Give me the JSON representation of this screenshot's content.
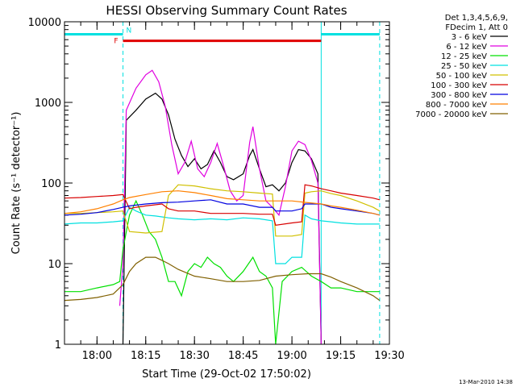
{
  "chart_data": {
    "type": "line",
    "title": "HESSI Observing Summary Count Rates",
    "xlabel": "Start Time (29-Oct-02 17:50:02)",
    "ylabel": "Count Rate (s⁻¹ detector⁻¹)",
    "yscale": "log",
    "xlim": [
      "17:50",
      "19:30"
    ],
    "ylim": [
      1,
      10000
    ],
    "x_ticks": [
      "18:00",
      "18:15",
      "18:30",
      "18:45",
      "19:00",
      "19:15",
      "19:30"
    ],
    "y_ticks": [
      "1",
      "10",
      "100",
      "1000",
      "10000"
    ],
    "legend_header": [
      "Det 1,3,4,5,6,9,",
      "FDecim 1, Att 0"
    ],
    "legend_position": "right",
    "flags": [
      {
        "label": "N",
        "color": "#00e0e0",
        "segments": [
          [
            "17:50",
            "18:08"
          ],
          [
            "19:09",
            "19:27"
          ]
        ],
        "level": 7000
      },
      {
        "label": "F",
        "color": "#e00000",
        "segments": [
          [
            "18:08",
            "19:09"
          ]
        ],
        "level": 5800
      }
    ],
    "vertical_markers": [
      {
        "time": "17:50",
        "style": "solid",
        "color": "#00e0e0"
      },
      {
        "time": "18:08",
        "style": "dashed",
        "color": "#00e0e0"
      },
      {
        "time": "19:09",
        "style": "solid",
        "color": "#00e0e0"
      },
      {
        "time": "19:27",
        "style": "dashed",
        "color": "#00e0e0"
      }
    ],
    "series": [
      {
        "name": "3 - 6 keV",
        "color": "#000000",
        "points": [
          [
            "18:08",
            1
          ],
          [
            "18:09",
            600
          ],
          [
            "18:12",
            800
          ],
          [
            "18:15",
            1100
          ],
          [
            "18:18",
            1300
          ],
          [
            "18:20",
            1100
          ],
          [
            "18:22",
            700
          ],
          [
            "18:24",
            350
          ],
          [
            "18:26",
            220
          ],
          [
            "18:28",
            160
          ],
          [
            "18:30",
            200
          ],
          [
            "18:32",
            150
          ],
          [
            "18:34",
            170
          ],
          [
            "18:36",
            250
          ],
          [
            "18:38",
            180
          ],
          [
            "18:40",
            120
          ],
          [
            "18:42",
            110
          ],
          [
            "18:45",
            130
          ],
          [
            "18:47",
            220
          ],
          [
            "18:48",
            260
          ],
          [
            "18:50",
            150
          ],
          [
            "18:52",
            90
          ],
          [
            "18:54",
            95
          ],
          [
            "18:56",
            80
          ],
          [
            "18:58",
            100
          ],
          [
            "19:00",
            180
          ],
          [
            "19:02",
            260
          ],
          [
            "19:04",
            250
          ],
          [
            "19:06",
            200
          ],
          [
            "19:08",
            130
          ],
          [
            "19:09",
            1
          ]
        ]
      },
      {
        "name": "6 - 12 keV",
        "color": "#e000e0",
        "points": [
          [
            "18:07",
            3
          ],
          [
            "18:08",
            10
          ],
          [
            "18:09",
            800
          ],
          [
            "18:12",
            1500
          ],
          [
            "18:15",
            2200
          ],
          [
            "18:17",
            2500
          ],
          [
            "18:19",
            1800
          ],
          [
            "18:21",
            900
          ],
          [
            "18:23",
            300
          ],
          [
            "18:25",
            130
          ],
          [
            "18:27",
            180
          ],
          [
            "18:29",
            330
          ],
          [
            "18:31",
            150
          ],
          [
            "18:33",
            120
          ],
          [
            "18:35",
            180
          ],
          [
            "18:37",
            310
          ],
          [
            "18:39",
            160
          ],
          [
            "18:41",
            80
          ],
          [
            "18:43",
            60
          ],
          [
            "18:45",
            70
          ],
          [
            "18:47",
            320
          ],
          [
            "18:48",
            500
          ],
          [
            "18:50",
            150
          ],
          [
            "18:52",
            60
          ],
          [
            "18:54",
            50
          ],
          [
            "18:56",
            40
          ],
          [
            "18:58",
            90
          ],
          [
            "19:00",
            250
          ],
          [
            "19:02",
            330
          ],
          [
            "19:04",
            300
          ],
          [
            "19:06",
            190
          ],
          [
            "19:08",
            100
          ],
          [
            "19:09",
            1
          ]
        ]
      },
      {
        "name": "12 - 25 keV",
        "color": "#00e000",
        "points": [
          [
            "17:50",
            4.5
          ],
          [
            "17:55",
            4.5
          ],
          [
            "18:00",
            5
          ],
          [
            "18:05",
            5.5
          ],
          [
            "18:07",
            6
          ],
          [
            "18:08",
            15
          ],
          [
            "18:10",
            40
          ],
          [
            "18:12",
            60
          ],
          [
            "18:14",
            40
          ],
          [
            "18:16",
            25
          ],
          [
            "18:18",
            20
          ],
          [
            "18:20",
            12
          ],
          [
            "18:22",
            6
          ],
          [
            "18:24",
            6
          ],
          [
            "18:26",
            4
          ],
          [
            "18:28",
            8
          ],
          [
            "18:30",
            10
          ],
          [
            "18:32",
            9
          ],
          [
            "18:34",
            12
          ],
          [
            "18:36",
            10
          ],
          [
            "18:38",
            9
          ],
          [
            "18:40",
            7
          ],
          [
            "18:42",
            6
          ],
          [
            "18:45",
            8
          ],
          [
            "18:48",
            12
          ],
          [
            "18:50",
            8
          ],
          [
            "18:52",
            7
          ],
          [
            "18:54",
            5
          ],
          [
            "18:55",
            1
          ],
          [
            "18:57",
            6
          ],
          [
            "19:00",
            8
          ],
          [
            "19:03",
            9
          ],
          [
            "19:06",
            7
          ],
          [
            "19:09",
            6
          ],
          [
            "19:12",
            5
          ],
          [
            "19:15",
            5
          ],
          [
            "19:20",
            4.5
          ],
          [
            "19:25",
            4.5
          ],
          [
            "19:27",
            4.5
          ]
        ]
      },
      {
        "name": "25 - 50 keV",
        "color": "#00e0e0",
        "points": [
          [
            "17:50",
            31
          ],
          [
            "17:55",
            32
          ],
          [
            "18:00",
            32
          ],
          [
            "18:05",
            33
          ],
          [
            "18:08",
            34
          ],
          [
            "18:10",
            50
          ],
          [
            "18:12",
            45
          ],
          [
            "18:15",
            40
          ],
          [
            "18:18",
            39
          ],
          [
            "18:20",
            38
          ],
          [
            "18:22",
            37
          ],
          [
            "18:25",
            36
          ],
          [
            "18:30",
            35
          ],
          [
            "18:35",
            36
          ],
          [
            "18:40",
            35
          ],
          [
            "18:45",
            37
          ],
          [
            "18:50",
            36
          ],
          [
            "18:54",
            34
          ],
          [
            "18:55",
            10
          ],
          [
            "18:58",
            10
          ],
          [
            "19:00",
            12
          ],
          [
            "19:03",
            12
          ],
          [
            "19:04",
            40
          ],
          [
            "19:06",
            36
          ],
          [
            "19:09",
            34
          ],
          [
            "19:12",
            33
          ],
          [
            "19:15",
            32
          ],
          [
            "19:20",
            31
          ],
          [
            "19:25",
            31
          ],
          [
            "19:27",
            31
          ]
        ]
      },
      {
        "name": "50 - 100 keV",
        "color": "#d0c000",
        "points": [
          [
            "17:50",
            42
          ],
          [
            "17:55",
            42
          ],
          [
            "18:00",
            43
          ],
          [
            "18:05",
            44
          ],
          [
            "18:08",
            45
          ],
          [
            "18:10",
            25
          ],
          [
            "18:15",
            24
          ],
          [
            "18:20",
            25
          ],
          [
            "18:22",
            70
          ],
          [
            "18:25",
            95
          ],
          [
            "18:30",
            92
          ],
          [
            "18:35",
            85
          ],
          [
            "18:40",
            80
          ],
          [
            "18:45",
            78
          ],
          [
            "18:50",
            75
          ],
          [
            "18:54",
            73
          ],
          [
            "18:55",
            22
          ],
          [
            "19:00",
            22
          ],
          [
            "19:03",
            23
          ],
          [
            "19:04",
            75
          ],
          [
            "19:06",
            78
          ],
          [
            "19:09",
            80
          ],
          [
            "19:12",
            74
          ],
          [
            "19:15",
            70
          ],
          [
            "19:20",
            60
          ],
          [
            "19:25",
            50
          ],
          [
            "19:27",
            45
          ]
        ]
      },
      {
        "name": "100 - 300 keV",
        "color": "#d80000",
        "points": [
          [
            "17:50",
            65
          ],
          [
            "17:55",
            66
          ],
          [
            "18:00",
            68
          ],
          [
            "18:05",
            70
          ],
          [
            "18:08",
            72
          ],
          [
            "18:10",
            48
          ],
          [
            "18:12",
            50
          ],
          [
            "18:15",
            52
          ],
          [
            "18:20",
            55
          ],
          [
            "18:22",
            48
          ],
          [
            "18:25",
            45
          ],
          [
            "18:30",
            45
          ],
          [
            "18:35",
            42
          ],
          [
            "18:40",
            42
          ],
          [
            "18:45",
            42
          ],
          [
            "18:50",
            41
          ],
          [
            "18:54",
            41
          ],
          [
            "18:55",
            30
          ],
          [
            "19:00",
            32
          ],
          [
            "19:03",
            33
          ],
          [
            "19:04",
            95
          ],
          [
            "19:06",
            92
          ],
          [
            "19:09",
            85
          ],
          [
            "19:12",
            80
          ],
          [
            "19:15",
            75
          ],
          [
            "19:20",
            70
          ],
          [
            "19:25",
            65
          ],
          [
            "19:27",
            62
          ]
        ]
      },
      {
        "name": "300 - 800 keV",
        "color": "#0000e0",
        "points": [
          [
            "17:50",
            40
          ],
          [
            "17:55",
            41
          ],
          [
            "18:00",
            43
          ],
          [
            "18:05",
            47
          ],
          [
            "18:08",
            50
          ],
          [
            "18:10",
            52
          ],
          [
            "18:15",
            55
          ],
          [
            "18:20",
            57
          ],
          [
            "18:25",
            58
          ],
          [
            "18:30",
            60
          ],
          [
            "18:35",
            62
          ],
          [
            "18:40",
            55
          ],
          [
            "18:45",
            55
          ],
          [
            "18:50",
            50
          ],
          [
            "18:54",
            50
          ],
          [
            "18:55",
            45
          ],
          [
            "19:00",
            45
          ],
          [
            "19:03",
            48
          ],
          [
            "19:04",
            55
          ],
          [
            "19:09",
            55
          ],
          [
            "19:12",
            50
          ],
          [
            "19:15",
            48
          ],
          [
            "19:20",
            45
          ],
          [
            "19:25",
            42
          ],
          [
            "19:27",
            40
          ]
        ]
      },
      {
        "name": "800 - 7000 keV",
        "color": "#ff8000",
        "points": [
          [
            "17:50",
            42
          ],
          [
            "17:55",
            44
          ],
          [
            "18:00",
            48
          ],
          [
            "18:05",
            55
          ],
          [
            "18:08",
            62
          ],
          [
            "18:10",
            66
          ],
          [
            "18:15",
            72
          ],
          [
            "18:20",
            78
          ],
          [
            "18:25",
            80
          ],
          [
            "18:30",
            76
          ],
          [
            "18:35",
            70
          ],
          [
            "18:40",
            64
          ],
          [
            "18:45",
            62
          ],
          [
            "18:50",
            60
          ],
          [
            "18:55",
            60
          ],
          [
            "19:00",
            60
          ],
          [
            "19:05",
            57
          ],
          [
            "19:09",
            55
          ],
          [
            "19:12",
            52
          ],
          [
            "19:15",
            50
          ],
          [
            "19:20",
            46
          ],
          [
            "19:25",
            42
          ],
          [
            "19:27",
            40
          ]
        ]
      },
      {
        "name": "7000 - 20000 keV",
        "color": "#806000",
        "points": [
          [
            "17:50",
            3.5
          ],
          [
            "17:55",
            3.6
          ],
          [
            "18:00",
            3.8
          ],
          [
            "18:05",
            4.2
          ],
          [
            "18:08",
            5.5
          ],
          [
            "18:10",
            8
          ],
          [
            "18:12",
            10
          ],
          [
            "18:15",
            12
          ],
          [
            "18:18",
            12
          ],
          [
            "18:20",
            11
          ],
          [
            "18:22",
            10
          ],
          [
            "18:25",
            8.5
          ],
          [
            "18:30",
            7
          ],
          [
            "18:35",
            6.5
          ],
          [
            "18:40",
            6
          ],
          [
            "18:45",
            6
          ],
          [
            "18:50",
            6.2
          ],
          [
            "18:55",
            7
          ],
          [
            "19:00",
            7.3
          ],
          [
            "19:05",
            7.5
          ],
          [
            "19:09",
            7.5
          ],
          [
            "19:12",
            6.8
          ],
          [
            "19:15",
            6
          ],
          [
            "19:20",
            5
          ],
          [
            "19:25",
            4
          ],
          [
            "19:27",
            3.5
          ]
        ]
      }
    ]
  },
  "footer": {
    "timestamp": "13-Mar-2010 14:38"
  }
}
